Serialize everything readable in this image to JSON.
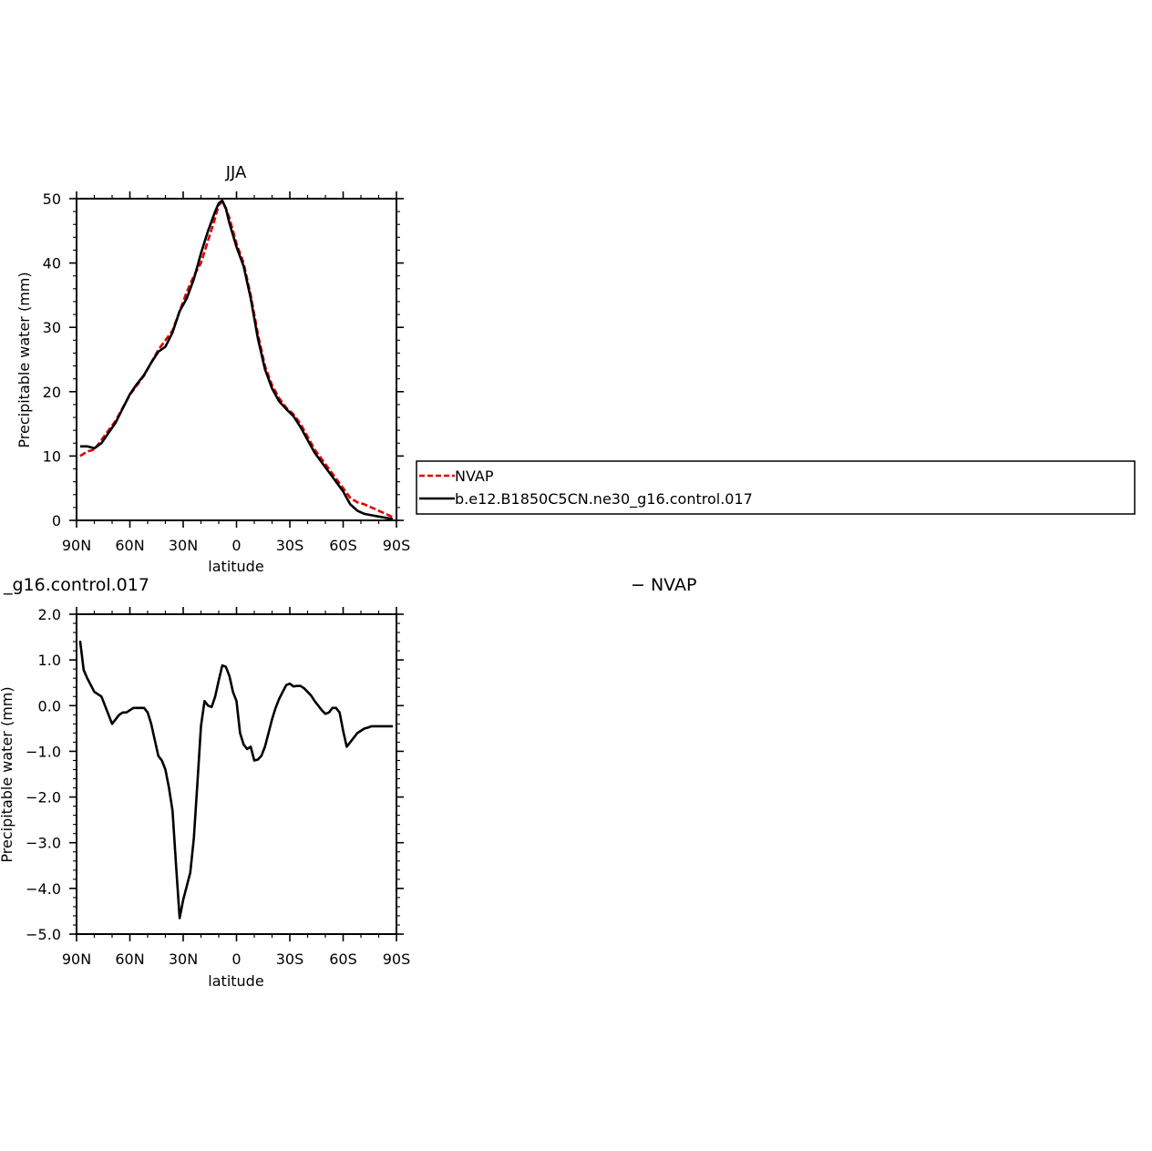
{
  "chart_data": [
    {
      "type": "line",
      "title": "JJA",
      "xlabel": "latitude",
      "ylabel": "Precipitable water (mm)",
      "xlim": [
        90,
        -90
      ],
      "ylim": [
        0,
        50
      ],
      "xticks": [
        90,
        60,
        30,
        0,
        -30,
        -60,
        -90
      ],
      "xtick_labels": [
        "90N",
        "60N",
        "30N",
        "0",
        "30S",
        "60S",
        "90S"
      ],
      "yticks": [
        0,
        10,
        20,
        30,
        40,
        50
      ],
      "ytick_labels": [
        "0",
        "10",
        "20",
        "30",
        "40",
        "50"
      ],
      "legend": {
        "position": "right",
        "entries": [
          "NVAP",
          "b.e12.B1850C5CN.ne30_g16.control.017"
        ]
      },
      "series": [
        {
          "name": "NVAP",
          "color": "#e00000",
          "dash": "dashed",
          "x": [
            88,
            84,
            80,
            76,
            72,
            68,
            64,
            60,
            56,
            52,
            48,
            44,
            40,
            36,
            32,
            28,
            24,
            20,
            16,
            12,
            10,
            8,
            6,
            4,
            0,
            -4,
            -8,
            -12,
            -16,
            -20,
            -24,
            -28,
            -32,
            -36,
            -40,
            -44,
            -48,
            -52,
            -56,
            -60,
            -64,
            -68,
            -72,
            -76,
            -80,
            -84,
            -88
          ],
          "values": [
            10.0,
            10.7,
            11.0,
            12.5,
            14.0,
            15.5,
            17.5,
            19.5,
            21.0,
            22.5,
            24.5,
            26.5,
            28.0,
            29.5,
            32.5,
            35.5,
            38.0,
            40.0,
            43.5,
            47.0,
            49.0,
            49.5,
            48.5,
            47.0,
            43.0,
            40.0,
            35.0,
            29.0,
            24.0,
            21.0,
            19.0,
            17.5,
            16.5,
            15.0,
            13.0,
            11.0,
            9.5,
            8.0,
            6.5,
            5.0,
            3.5,
            2.8,
            2.5,
            2.0,
            1.5,
            1.0,
            0.5
          ]
        },
        {
          "name": "b.e12.B1850C5CN.ne30_g16.control.017",
          "color": "#000000",
          "dash": "solid",
          "x": [
            88,
            84,
            80,
            76,
            72,
            68,
            64,
            60,
            56,
            52,
            48,
            44,
            40,
            36,
            32,
            28,
            24,
            20,
            16,
            12,
            10,
            8,
            6,
            4,
            0,
            -4,
            -8,
            -12,
            -16,
            -20,
            -24,
            -28,
            -32,
            -36,
            -40,
            -44,
            -48,
            -52,
            -56,
            -60,
            -64,
            -68,
            -72,
            -76,
            -80,
            -84,
            -88
          ],
          "values": [
            11.5,
            11.5,
            11.2,
            12.0,
            13.6,
            15.2,
            17.4,
            19.6,
            21.2,
            22.6,
            24.5,
            26.2,
            27.0,
            29.2,
            32.5,
            34.5,
            37.5,
            41.5,
            45.0,
            48.0,
            49.3,
            49.7,
            48.5,
            46.2,
            42.5,
            39.5,
            34.5,
            28.3,
            23.5,
            20.5,
            18.5,
            17.3,
            16.2,
            14.5,
            12.5,
            10.5,
            9.0,
            7.5,
            6.0,
            4.5,
            2.5,
            1.5,
            1.0,
            0.8,
            0.6,
            0.4,
            0.2
          ]
        }
      ]
    },
    {
      "type": "line",
      "title": "_g16.control.017",
      "title_right": "− NVAP",
      "xlabel": "latitude",
      "ylabel": "Precipitable water (mm)",
      "xlim": [
        90,
        -90
      ],
      "ylim": [
        -5,
        2
      ],
      "xticks": [
        90,
        60,
        30,
        0,
        -30,
        -60,
        -90
      ],
      "xtick_labels": [
        "90N",
        "60N",
        "30N",
        "0",
        "30S",
        "60S",
        "90S"
      ],
      "yticks": [
        2,
        1,
        0,
        -1,
        -2,
        -3,
        -4,
        -5
      ],
      "ytick_labels": [
        "2.0",
        "1.0",
        "0.0",
        "−1.0",
        "−2.0",
        "−3.0",
        "−4.0",
        "−5.0"
      ],
      "series": [
        {
          "color": "#000000",
          "dash": "solid",
          "x": [
            88,
            86,
            84,
            82,
            80,
            76,
            74,
            72,
            70,
            68,
            66,
            64,
            62,
            58,
            55,
            52,
            50,
            48,
            46,
            44,
            42,
            40,
            38,
            36,
            34,
            32,
            30,
            28,
            26,
            24,
            22,
            20,
            18,
            16,
            14,
            12,
            10,
            8,
            6,
            4,
            2,
            0,
            -2,
            -4,
            -6,
            -8,
            -10,
            -12,
            -14,
            -16,
            -18,
            -20,
            -22,
            -24,
            -26,
            -28,
            -30,
            -32,
            -34,
            -36,
            -38,
            -40,
            -42,
            -44,
            -46,
            -48,
            -50,
            -52,
            -54,
            -56,
            -58,
            -60,
            -62,
            -64,
            -66,
            -68,
            -70,
            -72,
            -74,
            -76,
            -78,
            -80,
            -82,
            -84,
            -86,
            -88
          ],
          "values": [
            1.42,
            0.78,
            0.6,
            0.45,
            0.3,
            0.2,
            0.0,
            -0.2,
            -0.4,
            -0.3,
            -0.2,
            -0.15,
            -0.15,
            -0.05,
            -0.05,
            -0.05,
            -0.15,
            -0.4,
            -0.75,
            -1.1,
            -1.2,
            -1.4,
            -1.8,
            -2.3,
            -3.5,
            -4.65,
            -4.25,
            -3.95,
            -3.65,
            -2.9,
            -1.7,
            -0.45,
            0.1,
            0.0,
            -0.03,
            0.2,
            0.55,
            0.88,
            0.85,
            0.65,
            0.3,
            0.1,
            -0.6,
            -0.85,
            -0.95,
            -0.9,
            -1.2,
            -1.18,
            -1.1,
            -0.9,
            -0.6,
            -0.3,
            -0.05,
            0.15,
            0.3,
            0.45,
            0.48,
            0.42,
            0.43,
            0.43,
            0.38,
            0.3,
            0.22,
            0.1,
            0.0,
            -0.1,
            -0.18,
            -0.15,
            -0.05,
            -0.05,
            -0.15,
            -0.55,
            -0.9,
            -0.8,
            -0.7,
            -0.6,
            -0.55,
            -0.5,
            -0.48,
            -0.45,
            -0.45,
            -0.45,
            -0.45,
            -0.45,
            -0.45,
            -0.45
          ]
        }
      ]
    }
  ]
}
